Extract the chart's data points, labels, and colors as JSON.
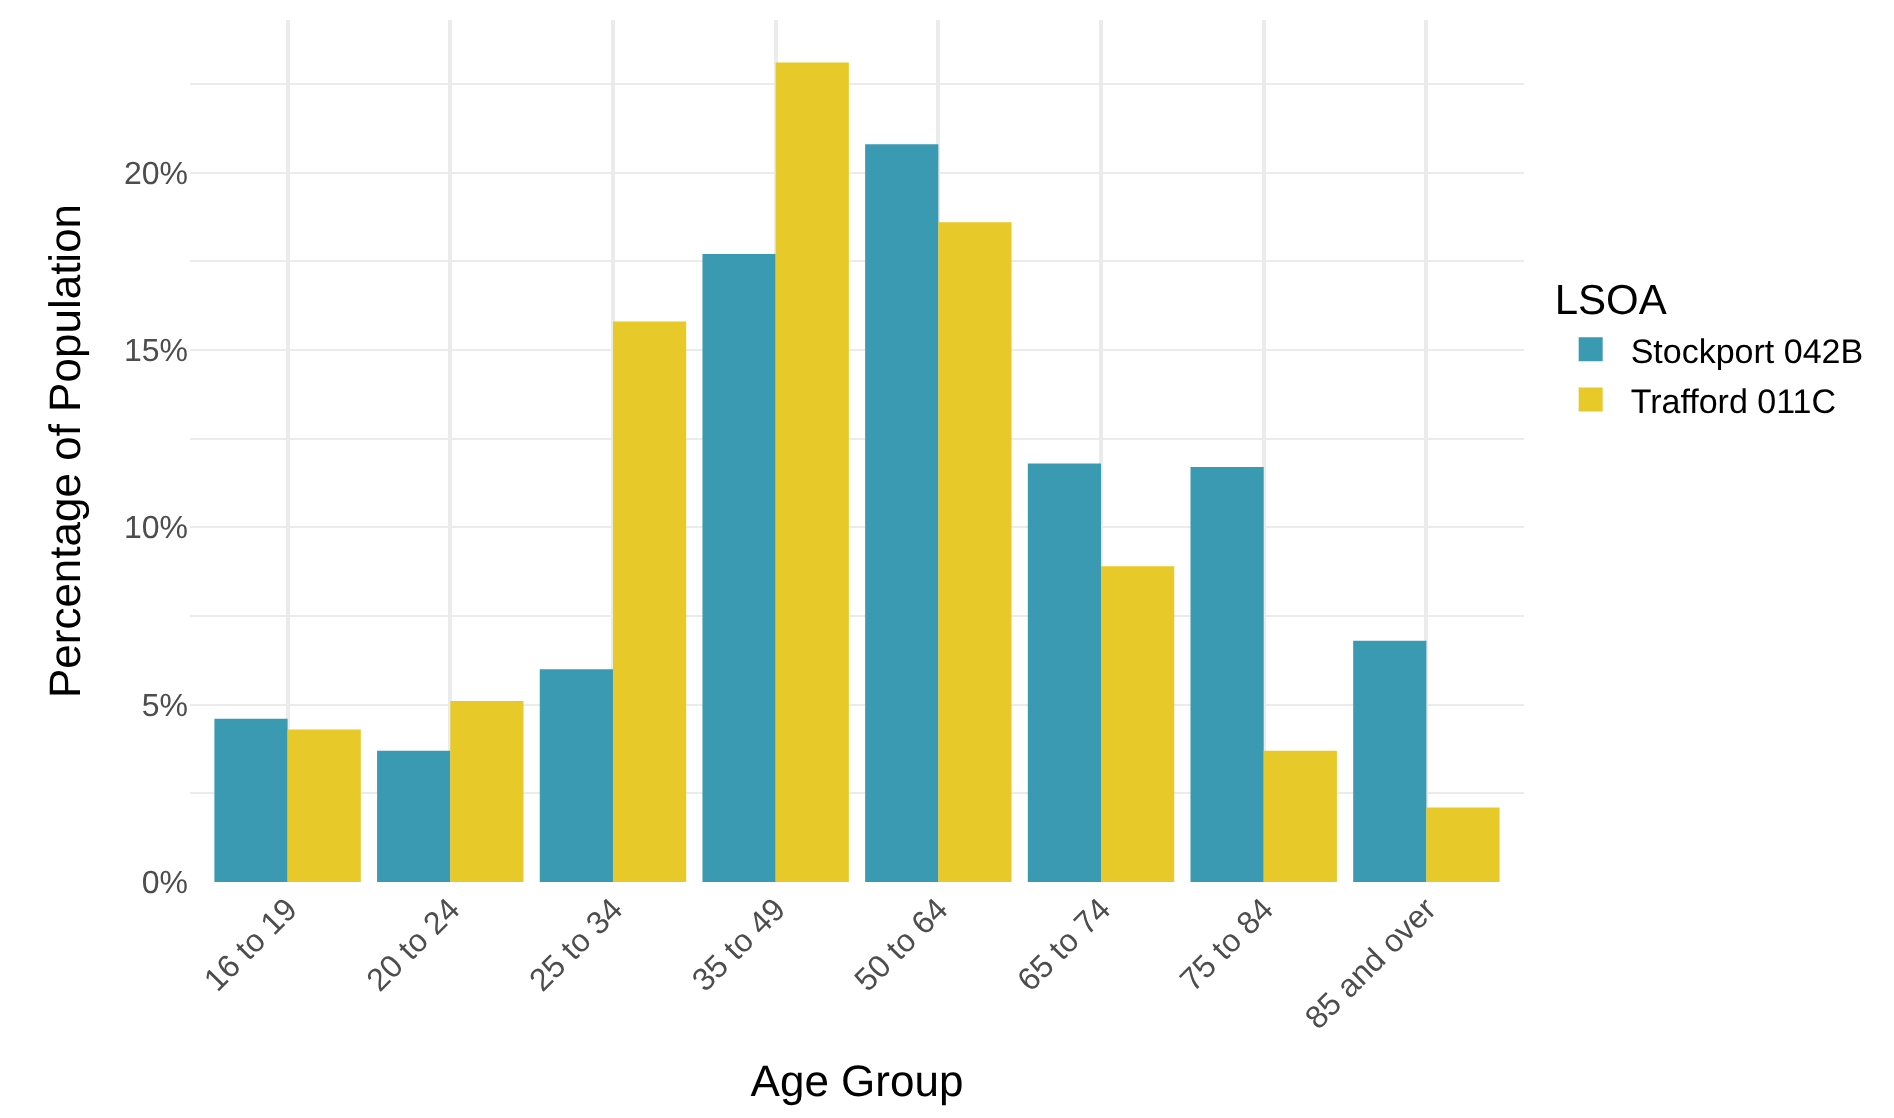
{
  "chart_data": {
    "type": "bar",
    "xlabel": "Age Group",
    "ylabel": "Percentage of Population",
    "legend_title": "LSOA",
    "categories": [
      "16 to 19",
      "20 to 24",
      "25 to 34",
      "35 to 49",
      "50 to 64",
      "65 to 74",
      "75 to 84",
      "85 and over"
    ],
    "series": [
      {
        "name": "Stockport 042B",
        "color": "#3a9ab2",
        "values": [
          4.6,
          3.7,
          6.0,
          17.7,
          20.8,
          11.8,
          11.7,
          6.8
        ]
      },
      {
        "name": "Trafford 011C",
        "color": "#e8c92a",
        "values": [
          4.3,
          5.1,
          15.8,
          23.1,
          18.6,
          8.9,
          3.7,
          2.1
        ]
      }
    ],
    "ylim": [
      0,
      24.3
    ],
    "yticks": [
      {
        "value": 0,
        "label": "0%"
      },
      {
        "value": 2.5,
        "label": null
      },
      {
        "value": 5,
        "label": "5%"
      },
      {
        "value": 7.5,
        "label": null
      },
      {
        "value": 10,
        "label": "10%"
      },
      {
        "value": 12.5,
        "label": null
      },
      {
        "value": 15,
        "label": "15%"
      },
      {
        "value": 17.5,
        "label": null
      },
      {
        "value": 20,
        "label": "20%"
      },
      {
        "value": 22.5,
        "label": null
      }
    ],
    "grid": true,
    "legend": "right"
  }
}
